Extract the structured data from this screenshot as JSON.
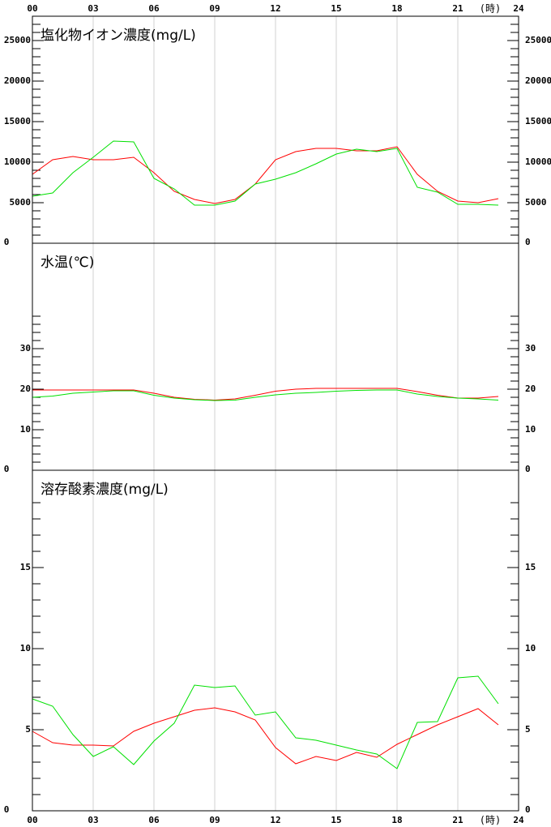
{
  "chart_data": [
    {
      "type": "line",
      "title": "塩化物イオン濃度(mg/L)",
      "xlabel": "(時)",
      "x": [
        0,
        1,
        2,
        3,
        4,
        5,
        6,
        7,
        8,
        9,
        10,
        11,
        12,
        13,
        14,
        15,
        16,
        17,
        18,
        19,
        20,
        21,
        22,
        23
      ],
      "xlim": [
        0,
        24
      ],
      "xticks": [
        {
          "value": 0,
          "label": "00"
        },
        {
          "value": 3,
          "label": "03"
        },
        {
          "value": 6,
          "label": "06"
        },
        {
          "value": 9,
          "label": "09"
        },
        12,
        15,
        18,
        21,
        24
      ],
      "ylim": [
        0,
        28000
      ],
      "yticks": [
        0,
        5000,
        10000,
        15000,
        20000,
        25000
      ],
      "yminorticks": [
        1000,
        2000,
        3000,
        4000,
        6000,
        7000,
        8000,
        9000,
        11000,
        12000,
        13000,
        14000,
        16000,
        17000,
        18000,
        19000,
        21000,
        22000,
        23000,
        24000,
        26000,
        27000
      ],
      "series": [
        {
          "color": "#ff0000",
          "values": [
            8500,
            10300,
            10700,
            10300,
            10300,
            10600,
            8700,
            6400,
            5400,
            4900,
            5400,
            7300,
            10300,
            11300,
            11700,
            11700,
            11400,
            11400,
            11900,
            8500,
            6400,
            5200,
            5000,
            5500
          ]
        },
        {
          "color": "#00e000",
          "values": [
            5800,
            6200,
            8700,
            10600,
            12600,
            12500,
            8000,
            6700,
            4700,
            4700,
            5200,
            7300,
            7900,
            8700,
            9800,
            11000,
            11600,
            11300,
            11700,
            6900,
            6300,
            4800,
            4800,
            4700
          ]
        }
      ]
    },
    {
      "type": "line",
      "title": "水温(℃)",
      "x": [
        0,
        1,
        2,
        3,
        4,
        5,
        6,
        7,
        8,
        9,
        10,
        11,
        12,
        13,
        14,
        15,
        16,
        17,
        18,
        19,
        20,
        21,
        22,
        23
      ],
      "xlim": [
        0,
        24
      ],
      "xgrid": [
        3,
        6,
        9,
        12,
        15,
        18,
        21
      ],
      "ylim": [
        0,
        56
      ],
      "yticks": [
        0,
        10,
        20,
        30
      ],
      "yminorticks": [
        2,
        4,
        6,
        8,
        12,
        14,
        16,
        18,
        22,
        24,
        26,
        28,
        32,
        34,
        36,
        38
      ],
      "series": [
        {
          "color": "#ff0000",
          "values": [
            19.8,
            19.8,
            19.8,
            19.8,
            19.8,
            19.8,
            19,
            18,
            17.5,
            17.3,
            17.6,
            18.5,
            19.5,
            20,
            20.2,
            20.2,
            20.2,
            20.2,
            20.2,
            19.4,
            18.5,
            17.8,
            17.8,
            18.2
          ]
        },
        {
          "color": "#00e000",
          "values": [
            18,
            18.3,
            19,
            19.3,
            19.6,
            19.6,
            18.5,
            17.8,
            17.4,
            17.2,
            17.3,
            18,
            18.6,
            19,
            19.2,
            19.5,
            19.7,
            19.8,
            19.8,
            18.8,
            18.2,
            17.8,
            17.6,
            17.3
          ]
        }
      ]
    },
    {
      "type": "line",
      "title": "溶存酸素濃度(mg/L)",
      "xlabel": "(時)",
      "x": [
        0,
        1,
        2,
        3,
        4,
        5,
        6,
        7,
        8,
        9,
        10,
        11,
        12,
        13,
        14,
        15,
        16,
        17,
        18,
        19,
        20,
        21,
        22,
        23
      ],
      "xlim": [
        0,
        24
      ],
      "xticks": [
        {
          "value": 0,
          "label": "00"
        },
        {
          "value": 3,
          "label": "03"
        },
        {
          "value": 6,
          "label": "06"
        },
        {
          "value": 9,
          "label": "09"
        },
        12,
        15,
        18,
        21,
        24
      ],
      "ylim": [
        0,
        21
      ],
      "yticks": [
        0,
        5,
        10,
        15
      ],
      "yminorticks": [
        1,
        2,
        3,
        4,
        6,
        7,
        8,
        9,
        11,
        12,
        13,
        14,
        16,
        17,
        18,
        19
      ],
      "series": [
        {
          "color": "#ff0000",
          "values": [
            4.9,
            4.2,
            4.05,
            4.05,
            4.0,
            4.9,
            5.4,
            5.8,
            6.2,
            6.35,
            6.1,
            5.6,
            3.9,
            2.9,
            3.35,
            3.1,
            3.6,
            3.3,
            4.1,
            4.7,
            5.3,
            5.8,
            6.3,
            5.3
          ]
        },
        {
          "color": "#00e000",
          "values": [
            6.9,
            6.45,
            4.7,
            3.35,
            3.95,
            2.85,
            4.3,
            5.4,
            7.75,
            7.6,
            7.7,
            5.9,
            6.1,
            4.5,
            4.35,
            4.05,
            3.75,
            3.5,
            2.6,
            5.45,
            5.5,
            8.2,
            8.3,
            6.6
          ]
        }
      ]
    }
  ]
}
